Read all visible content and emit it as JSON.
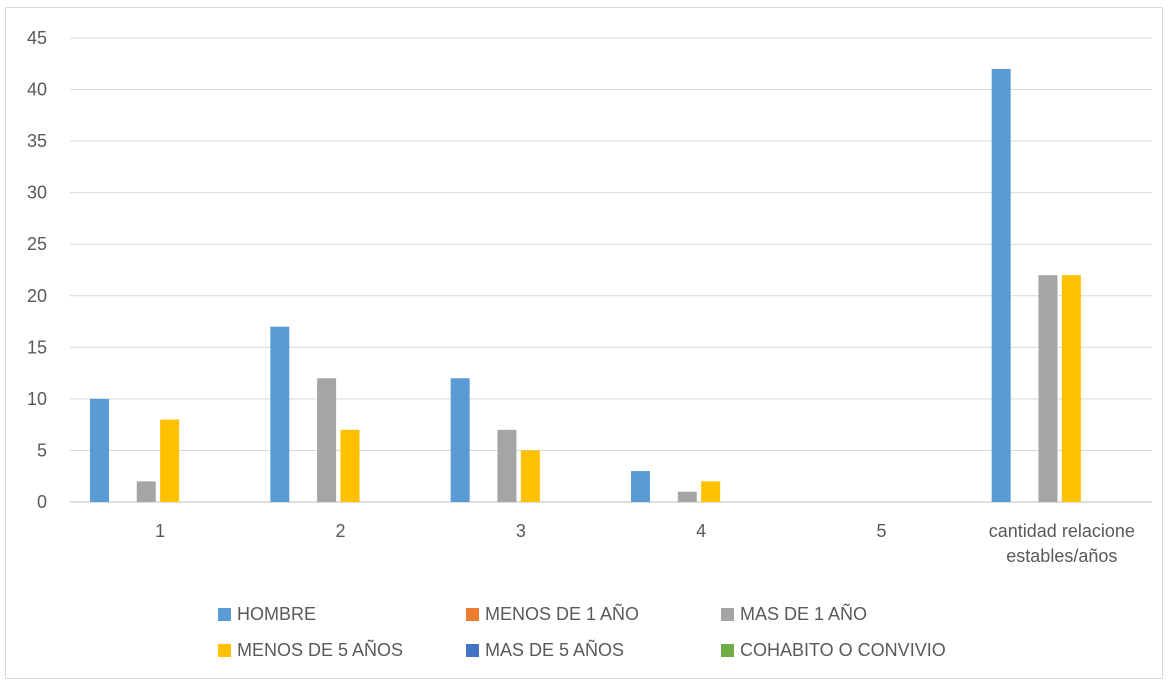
{
  "chart_data": {
    "type": "bar",
    "categories": [
      "1",
      "2",
      "3",
      "4",
      "5",
      "cantidad relacione estables/años"
    ],
    "category_label_lines": [
      [
        "1"
      ],
      [
        "2"
      ],
      [
        "3"
      ],
      [
        "4"
      ],
      [
        "5"
      ],
      [
        "cantidad relacione",
        "estables/años"
      ]
    ],
    "series": [
      {
        "name": "HOMBRE",
        "color": "#5b9bd5",
        "values": [
          10,
          17,
          12,
          3,
          0,
          42
        ]
      },
      {
        "name": "MENOS DE 1 AÑO",
        "color": "#ed7d31",
        "values": [
          0,
          0,
          0,
          0,
          0,
          0
        ]
      },
      {
        "name": "MAS DE 1 AÑO",
        "color": "#a5a5a5",
        "values": [
          2,
          12,
          7,
          1,
          0,
          22
        ]
      },
      {
        "name": "MENOS DE 5 AÑOS",
        "color": "#ffc000",
        "values": [
          8,
          7,
          5,
          2,
          0,
          22
        ]
      },
      {
        "name": "MAS DE 5 AÑOS",
        "color": "#4472c4",
        "values": [
          0,
          0,
          0,
          0,
          0,
          0
        ]
      },
      {
        "name": "COHABITO O CONVIVIO",
        "color": "#70ad47",
        "values": [
          0,
          0,
          0,
          0,
          0,
          0
        ]
      }
    ],
    "ylim": [
      0,
      45
    ],
    "yticks": [
      0,
      5,
      10,
      15,
      20,
      25,
      30,
      35,
      40,
      45
    ],
    "grid": true,
    "legend_position": "bottom"
  }
}
